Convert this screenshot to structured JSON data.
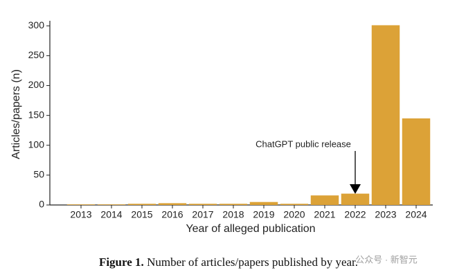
{
  "chart_data": {
    "type": "bar",
    "categories": [
      "2013",
      "2014",
      "2015",
      "2016",
      "2017",
      "2018",
      "2019",
      "2020",
      "2021",
      "2022",
      "2023",
      "2024"
    ],
    "values": [
      1,
      1,
      2,
      3,
      2,
      2,
      5,
      2,
      16,
      19,
      301,
      145
    ],
    "color": "#dca237",
    "ylim": [
      0,
      305
    ],
    "yticks": [
      0,
      50,
      100,
      150,
      200,
      250,
      300
    ],
    "xlabel": "Year of alleged publication",
    "ylabel": "Articles/papers (n)",
    "annotation": "ChatGPT public release",
    "grid": false
  },
  "caption": {
    "label": "Figure 1.",
    "text": "Number of articles/papers published by year."
  },
  "watermark": "公众号 · 新智元"
}
